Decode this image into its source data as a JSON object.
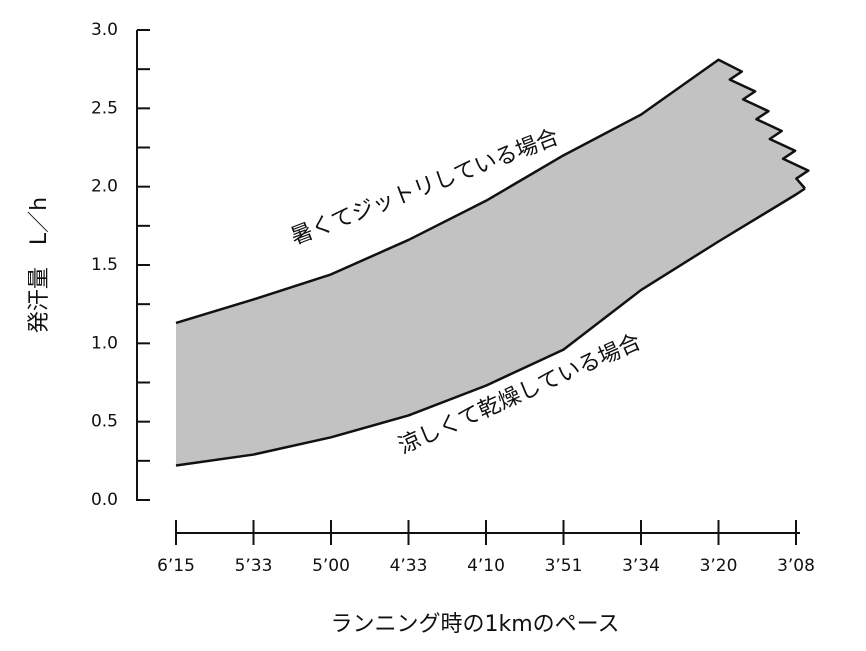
{
  "chart_data": {
    "type": "band",
    "y_label": "発汗量　L／h",
    "x_label": "ランニング時の1kmのペース",
    "categories": [
      "6’15",
      "5’33",
      "5’00",
      "4’33",
      "4’10",
      "3’51",
      "3’34",
      "3’20",
      "3’08"
    ],
    "series": [
      {
        "name": "暑くてジットリしている場合",
        "color": "#111111",
        "values": [
          1.13,
          1.28,
          1.44,
          1.66,
          1.91,
          2.2,
          2.46,
          2.81,
          null
        ]
      },
      {
        "name": "涼しくて乾燥している場合",
        "color": "#111111",
        "values": [
          0.22,
          0.29,
          0.4,
          0.54,
          0.73,
          0.96,
          1.34,
          1.65,
          1.95
        ]
      }
    ],
    "fill_color": "#c2c2c2",
    "ylim": [
      0,
      3
    ],
    "yticks": [
      {
        "value": 0,
        "label": "0.0"
      },
      0.5,
      {
        "value": 1,
        "label": "1.0"
      },
      1.5,
      {
        "value": 2,
        "label": "2.0"
      },
      2.5,
      {
        "value": 3,
        "label": "3.0"
      }
    ],
    "yminorticks": [
      0.25,
      0.75,
      1.25,
      1.75,
      2.25,
      2.75
    ]
  }
}
